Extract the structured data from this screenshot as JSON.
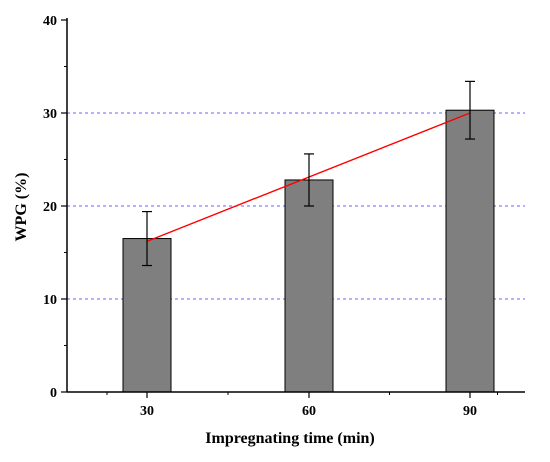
{
  "chart_data": {
    "type": "bar",
    "title": "",
    "xlabel": "Impregnating time (min)",
    "ylabel": "WPG (%)",
    "categories": [
      "30",
      "60",
      "90"
    ],
    "values": [
      16.5,
      22.8,
      30.3
    ],
    "errors": [
      2.9,
      2.8,
      3.1
    ],
    "ylim": [
      0,
      40
    ],
    "yticks": [
      "0",
      "10",
      "20",
      "30",
      "40"
    ],
    "trend_line": {
      "from": 16.2,
      "to": 30.0
    },
    "grid": {
      "y_dashed": [
        10,
        20,
        30
      ]
    },
    "colors": {
      "bar": "#7f7f7f",
      "bar_edge": "#000000",
      "trend": "#ff0000",
      "grid": "#6666ff"
    }
  }
}
